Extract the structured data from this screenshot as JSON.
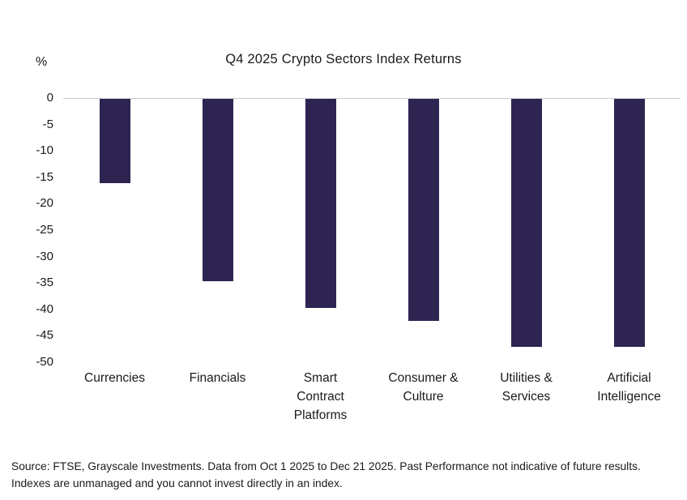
{
  "chart_data": {
    "type": "bar",
    "title": "Q4 2025 Crypto Sectors Index Returns",
    "ylabel": "%",
    "categories": [
      "Currencies",
      "Financials",
      "Smart Contract Platforms",
      "Consumer & Culture",
      "Utilities & Services",
      "Artificial Intelligence"
    ],
    "values": [
      -16,
      -34.5,
      -39.5,
      -42,
      -47,
      -47
    ],
    "ylim": [
      -50,
      0
    ],
    "yticks": [
      0,
      -5,
      -10,
      -15,
      -20,
      -25,
      -30,
      -35,
      -40,
      -45,
      -50
    ],
    "bar_color": "#2e2452",
    "zero_line_color": "#cccccc",
    "grid": false,
    "legend": "none"
  },
  "footer": {
    "source_text": "Source: FTSE, Grayscale Investments. Data from Oct 1 2025 to Dec 21 2025. Past Performance not indicative of future results. Indexes are unmanaged and you cannot invest directly in an index."
  }
}
